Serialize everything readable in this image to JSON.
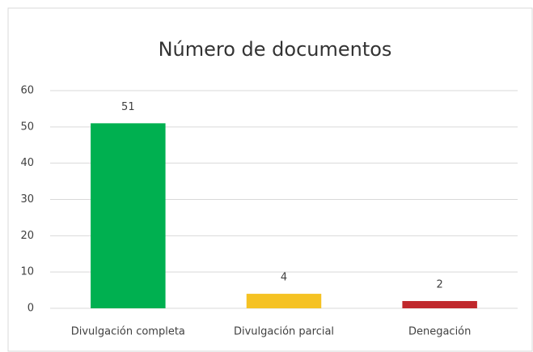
{
  "chart_data": {
    "type": "bar",
    "title": "Número de documentos",
    "categories": [
      "Divulgación completa",
      "Divulgación parcial",
      "Denegación"
    ],
    "values": [
      51,
      4,
      2
    ],
    "colors": [
      "#00b050",
      "#f5c223",
      "#c0282c"
    ],
    "ylim": [
      0,
      60
    ],
    "yticks": [
      0,
      10,
      20,
      30,
      40,
      50,
      60
    ],
    "grid": true
  }
}
